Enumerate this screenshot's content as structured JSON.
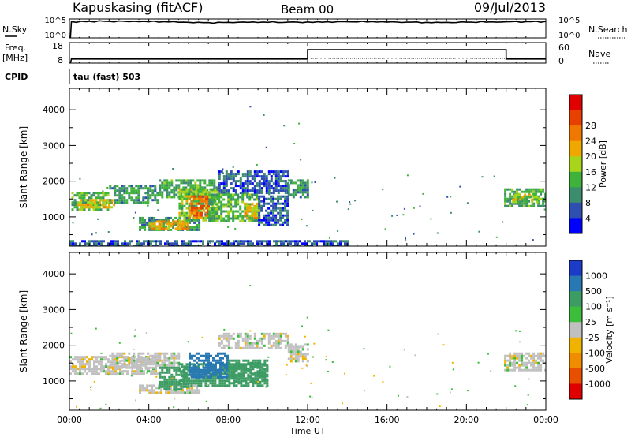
{
  "header": {
    "station": "Kapuskasing (fitACF)",
    "beam": "Beam 00",
    "date": "09/Jul/2013"
  },
  "noise_panel": {
    "left_label": "N.Sky",
    "right_label": "N.Search",
    "left_ticks": [
      "10^5",
      "10^0"
    ],
    "right_ticks": [
      "10^5",
      "10^0"
    ]
  },
  "freq_panel": {
    "left_label_1": "Freq.",
    "left_label_2": "[MHz]",
    "right_label": "Nave",
    "left_ticks": [
      "18",
      "8"
    ],
    "right_ticks": [
      "60",
      "0"
    ]
  },
  "cpid": {
    "label": "CPID",
    "value": "tau (fast) 503"
  },
  "axes": {
    "xlabel": "Time UT",
    "ylabel": "Slant Range [km]",
    "x_ticks": [
      "00:00",
      "04:00",
      "08:00",
      "12:00",
      "16:00",
      "20:00",
      "00:00"
    ],
    "y_ticks": [
      "1000",
      "2000",
      "3000",
      "4000"
    ]
  },
  "power_colorbar": {
    "label": "Power [dB]",
    "ticks": [
      "4",
      "8",
      "12",
      "16",
      "20",
      "24",
      "28"
    ],
    "colors": [
      "#0000ff",
      "#2f4fb0",
      "#3c8c6e",
      "#3fb23c",
      "#a8d41c",
      "#f0a800",
      "#f07800",
      "#e84000",
      "#e00000"
    ]
  },
  "velocity_colorbar": {
    "label": "Velocity [m s⁻¹]",
    "ticks": [
      "1000",
      "500",
      "100",
      "25",
      "-25",
      "-100",
      "-500",
      "-1000"
    ],
    "colors": [
      "#1c3cc8",
      "#2878b4",
      "#3c9c64",
      "#3cbe3c",
      "#c0c0c0",
      "#f0b400",
      "#f08c00",
      "#e85000",
      "#e00000"
    ]
  },
  "chart_data": [
    {
      "type": "line",
      "title": "N.Sky",
      "x_range_hours": [
        0,
        24
      ],
      "series": [
        {
          "name": "N.Sky",
          "x": [
            0.05,
            0.1,
            1,
            2,
            3,
            4,
            5,
            6,
            7,
            8,
            9,
            10,
            11,
            12,
            13,
            14,
            15,
            16,
            17,
            18,
            19,
            20,
            21,
            22,
            23,
            24
          ],
          "values_log10": [
            0,
            4.3,
            4.4,
            4.35,
            4.3,
            4.25,
            4.2,
            4.1,
            4.05,
            4.1,
            4.1,
            4.1,
            4.15,
            4.2,
            4.25,
            4.25,
            4.2,
            4.15,
            4.15,
            4.1,
            4.1,
            4.15,
            4.15,
            4.25,
            4.3,
            4.35
          ]
        }
      ]
    },
    {
      "type": "line",
      "title": "Freq. [MHz] / Nave",
      "x_range_hours": [
        0,
        24
      ],
      "series": [
        {
          "name": "Freq.",
          "x": [
            0.05,
            0.1,
            12,
            12,
            22,
            22,
            24
          ],
          "values": [
            8,
            10,
            10,
            14.5,
            14.5,
            10,
            10
          ]
        }
      ]
    },
    {
      "type": "heatmap",
      "title": "Power [dB]",
      "x_range_hours": [
        0,
        24
      ],
      "y_range_km": [
        180,
        4600
      ],
      "regions": [
        {
          "t0": 0.1,
          "t1": 2.0,
          "r0": 1180,
          "r1": 1700,
          "level": 12
        },
        {
          "t0": 0.4,
          "t1": 2.3,
          "r0": 1300,
          "r1": 1500,
          "level": 18
        },
        {
          "t0": 2.0,
          "t1": 4.5,
          "r0": 1380,
          "r1": 1900,
          "level": 10
        },
        {
          "t0": 4.5,
          "t1": 7.5,
          "r0": 1550,
          "r1": 2050,
          "level": 11
        },
        {
          "t0": 7.5,
          "t1": 11.0,
          "r0": 1650,
          "r1": 2300,
          "level": 6
        },
        {
          "t0": 3.5,
          "t1": 6.5,
          "r0": 650,
          "r1": 1000,
          "level": 10
        },
        {
          "t0": 4.0,
          "t1": 6.0,
          "r0": 700,
          "r1": 900,
          "level": 20
        },
        {
          "t0": 5.5,
          "t1": 7.5,
          "r0": 900,
          "r1": 1800,
          "level": 14
        },
        {
          "t0": 6.0,
          "t1": 7.0,
          "r0": 1000,
          "r1": 1600,
          "level": 24
        },
        {
          "t0": 7.0,
          "t1": 9.5,
          "r0": 900,
          "r1": 1650,
          "level": 12
        },
        {
          "t0": 8.8,
          "t1": 9.6,
          "r0": 1000,
          "r1": 1400,
          "level": 18
        },
        {
          "t0": 9.5,
          "t1": 11.0,
          "r0": 800,
          "r1": 1600,
          "level": 6
        },
        {
          "t0": 11.0,
          "t1": 12.0,
          "r0": 1550,
          "r1": 2050,
          "level": 10
        },
        {
          "t0": 21.9,
          "t1": 24.0,
          "r0": 1300,
          "r1": 1800,
          "level": 11
        },
        {
          "t0": 22.3,
          "t1": 23.5,
          "r0": 1450,
          "r1": 1650,
          "level": 16
        },
        {
          "t0": 0.0,
          "t1": 14.0,
          "r0": 200,
          "r1": 350,
          "level": 6
        }
      ]
    },
    {
      "type": "heatmap",
      "title": "Velocity [m s⁻¹]",
      "x_range_hours": [
        0,
        24
      ],
      "y_range_km": [
        180,
        4600
      ],
      "regions": [
        {
          "t0": 0.0,
          "t1": 4.5,
          "r0": 1180,
          "r1": 1700,
          "value": 0
        },
        {
          "t0": 2.0,
          "t1": 5.5,
          "r0": 1380,
          "r1": 1800,
          "value": 0
        },
        {
          "t0": 7.5,
          "t1": 11.0,
          "r0": 1900,
          "r1": 2350,
          "value": 0
        },
        {
          "t0": 3.5,
          "t1": 6.5,
          "r0": 650,
          "r1": 900,
          "value": 0
        },
        {
          "t0": 4.5,
          "t1": 6.0,
          "r0": 800,
          "r1": 1400,
          "value": 150
        },
        {
          "t0": 5.5,
          "t1": 10.0,
          "r0": 900,
          "r1": 1500,
          "value": 300
        },
        {
          "t0": 6.0,
          "t1": 8.0,
          "r0": 1100,
          "r1": 1800,
          "value": 700
        },
        {
          "t0": 8.0,
          "t1": 10.0,
          "r0": 1000,
          "r1": 1600,
          "value": 200
        },
        {
          "t0": 11.0,
          "t1": 12.0,
          "r0": 1550,
          "r1": 2050,
          "value": 0
        },
        {
          "t0": 21.9,
          "t1": 24.0,
          "r0": 1300,
          "r1": 1800,
          "value": 0
        }
      ]
    }
  ]
}
